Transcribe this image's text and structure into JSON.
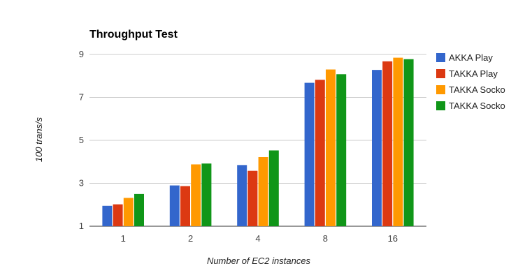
{
  "chart_data": {
    "type": "bar",
    "title": "Throughput Test",
    "xlabel": "Number of EC2 instances",
    "ylabel": "100 trans/s",
    "categories": [
      "1",
      "2",
      "4",
      "8",
      "16"
    ],
    "ylim": [
      1,
      9
    ],
    "yticks": [
      1,
      3,
      5,
      7,
      9
    ],
    "grid": true,
    "legend_position": "right",
    "series": [
      {
        "name": "AKKA Play",
        "color": "#3366cc",
        "values": [
          1.95,
          2.9,
          3.85,
          7.68,
          8.28
        ]
      },
      {
        "name": "TAKKA Play",
        "color": "#dc3912",
        "values": [
          2.02,
          2.87,
          3.58,
          7.82,
          8.68
        ]
      },
      {
        "name": "TAKKA Socko",
        "color": "#ff9900",
        "values": [
          2.32,
          3.88,
          4.22,
          8.3,
          8.85
        ]
      },
      {
        "name": "TAKKA Socko",
        "color": "#109618",
        "values": [
          2.5,
          3.92,
          4.53,
          8.08,
          8.78
        ]
      }
    ]
  }
}
